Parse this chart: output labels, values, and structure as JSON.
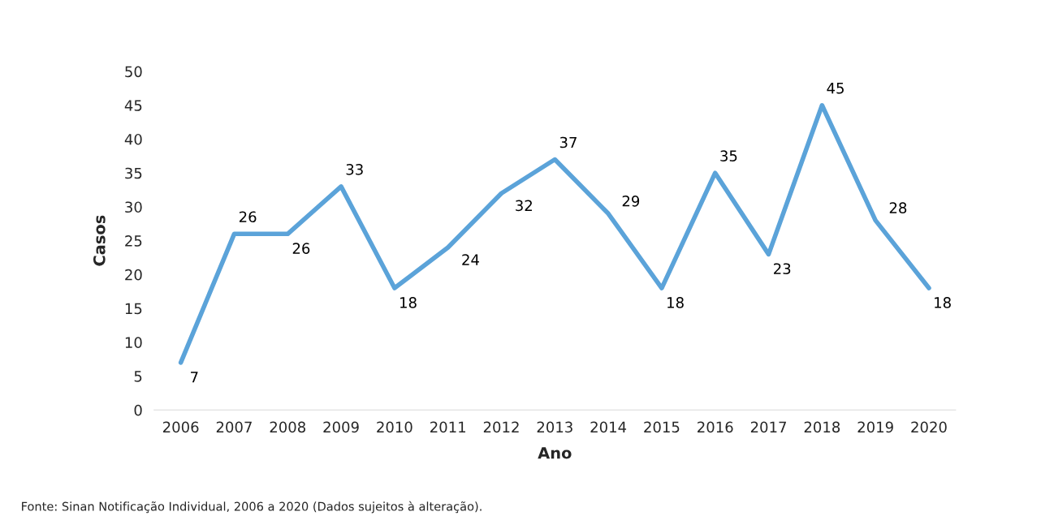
{
  "chart_data": {
    "type": "line",
    "xlabel": "Ano",
    "ylabel": "Casos",
    "categories": [
      "2006",
      "2007",
      "2008",
      "2009",
      "2010",
      "2011",
      "2012",
      "2013",
      "2014",
      "2015",
      "2016",
      "2017",
      "2018",
      "2019",
      "2020"
    ],
    "series": [
      {
        "color": "#5ba3d9",
        "values": [
          7,
          26,
          26,
          33,
          18,
          24,
          32,
          37,
          29,
          18,
          35,
          23,
          45,
          28,
          18
        ]
      }
    ],
    "ylim": [
      0,
      50
    ],
    "yticks": [
      0,
      5,
      10,
      15,
      20,
      25,
      30,
      35,
      40,
      45,
      50
    ],
    "data_labels": true,
    "grid": false,
    "legend": false,
    "marker": "none",
    "line_style": "solid",
    "annotations": [
      "Fonte: Sinan Notificação Individual, 2006 a 2020 (Dados sujeitos à alteração)."
    ]
  }
}
